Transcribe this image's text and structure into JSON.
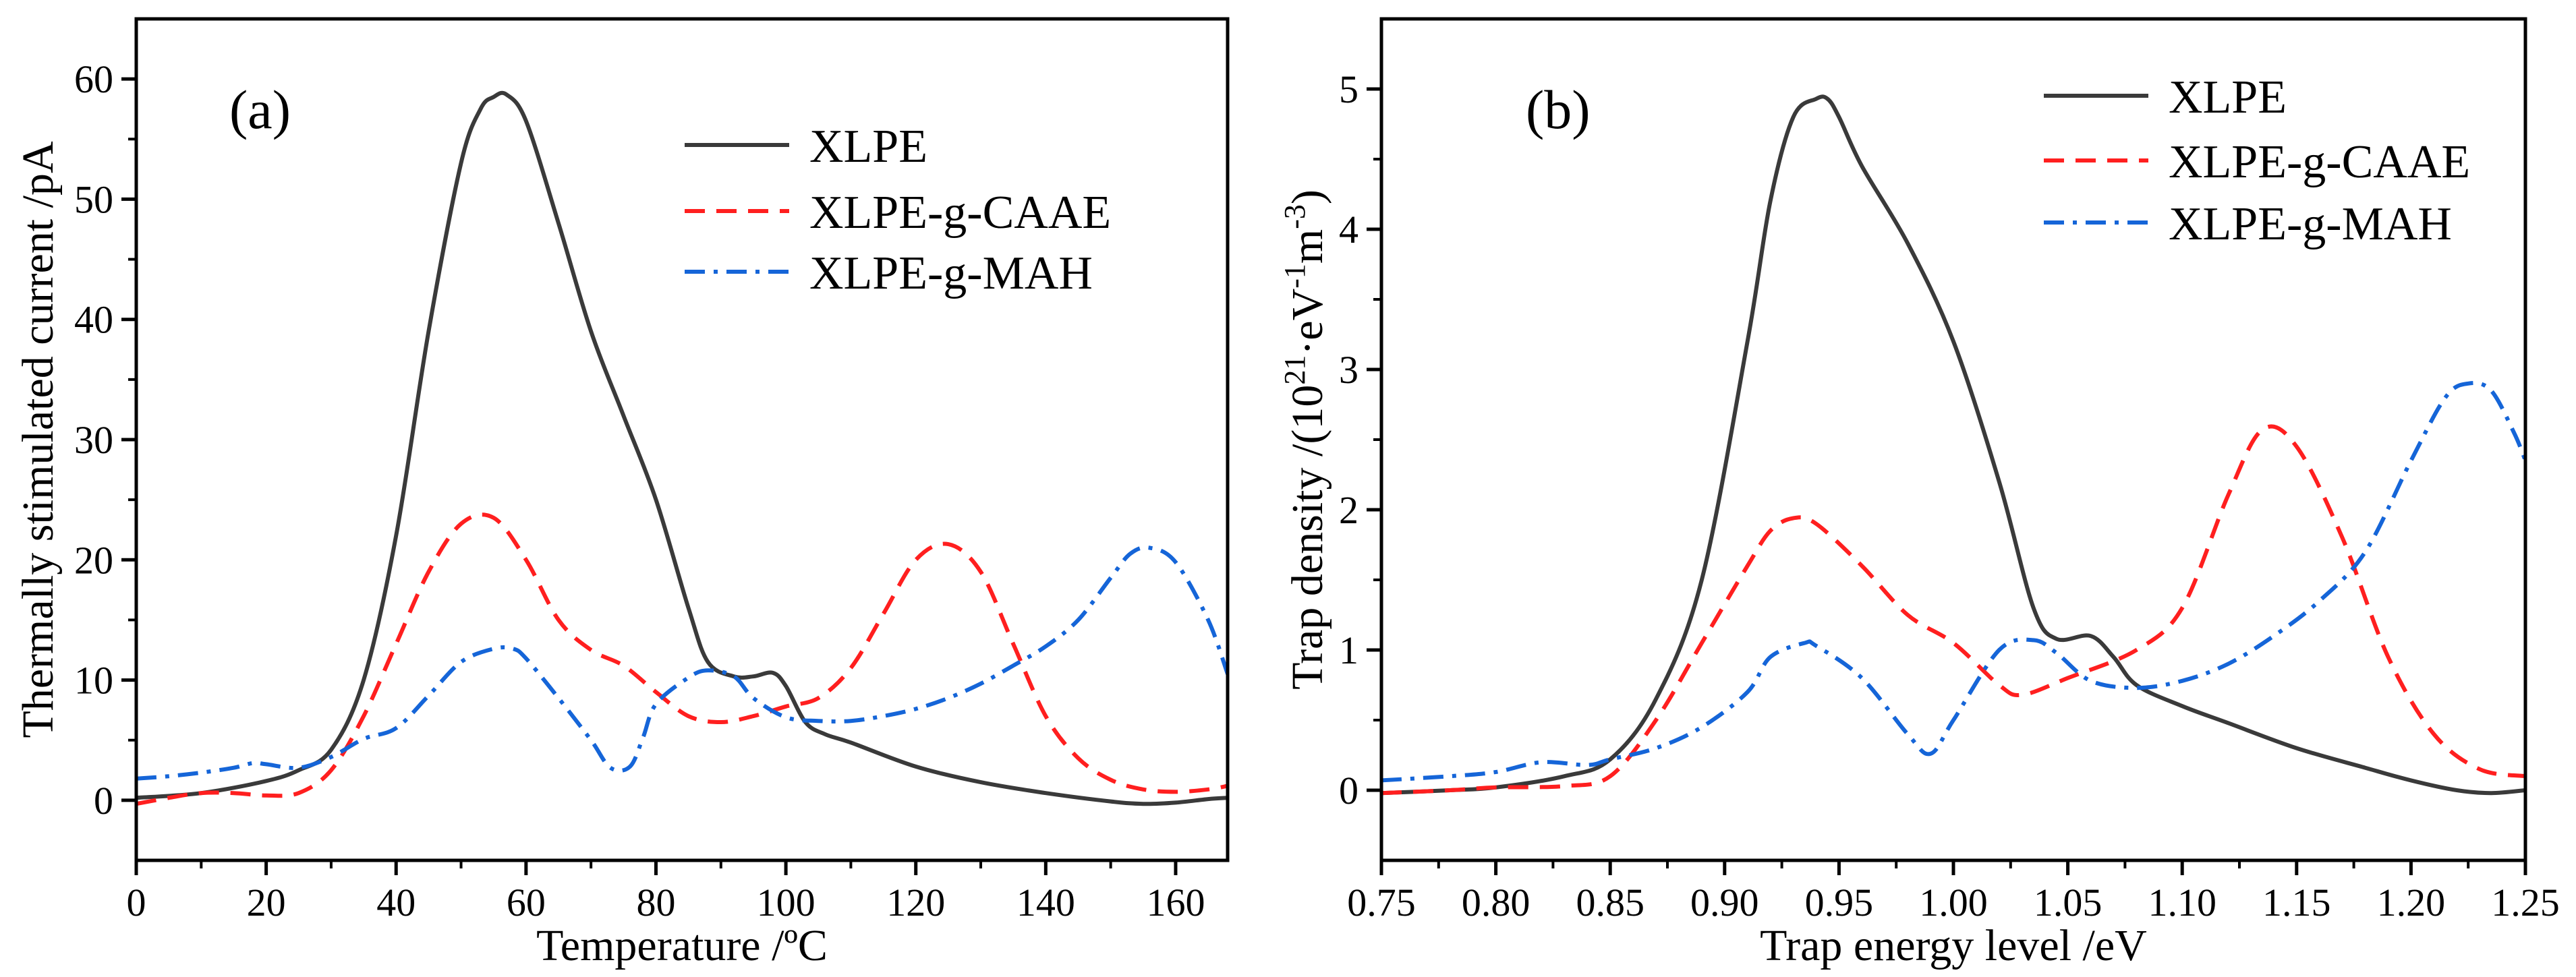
{
  "chart_data": [
    {
      "type": "line",
      "panel_label": "(a)",
      "xlabel": "Temperature /ºC",
      "ylabel": "Thermally stimulated current /pA",
      "xlim": [
        0,
        168
      ],
      "ylim": [
        -5,
        65
      ],
      "xticks": [
        0,
        20,
        40,
        60,
        80,
        100,
        120,
        140,
        160
      ],
      "yticks": [
        0,
        10,
        20,
        30,
        40,
        50,
        60
      ],
      "xtick_labels": [
        "0",
        "20",
        "40",
        "60",
        "80",
        "100",
        "120",
        "140",
        "160"
      ],
      "ytick_labels": [
        "0",
        "10",
        "20",
        "30",
        "40",
        "50",
        "60"
      ],
      "legend_position": "top-right",
      "series": [
        {
          "name": "XLPE",
          "color": "#3a3a3a",
          "style": "solid",
          "x": [
            0,
            10,
            20,
            25,
            30,
            35,
            40,
            45,
            50,
            53,
            55,
            57,
            60,
            65,
            70,
            75,
            80,
            85,
            88,
            92,
            95,
            98,
            100,
            103,
            106,
            110,
            120,
            130,
            140,
            150,
            155,
            160,
            165,
            168
          ],
          "y": [
            0.2,
            0.6,
            1.6,
            2.5,
            4.2,
            10,
            22,
            39,
            53,
            57.5,
            58.5,
            58.7,
            56.5,
            48,
            39,
            32,
            25,
            16,
            11.5,
            10.3,
            10.3,
            10.6,
            9.5,
            6.5,
            5.5,
            4.8,
            2.8,
            1.5,
            0.6,
            -0.1,
            -0.3,
            -0.2,
            0.1,
            0.2
          ]
        },
        {
          "name": "XLPE-g-CAAE",
          "color": "#ff1f1f",
          "style": "dashed",
          "x": [
            0,
            5,
            10,
            15,
            20,
            25,
            30,
            35,
            40,
            45,
            50,
            55,
            60,
            65,
            70,
            75,
            80,
            85,
            90,
            95,
            100,
            105,
            110,
            115,
            120,
            125,
            130,
            135,
            140,
            145,
            150,
            155,
            160,
            165,
            168
          ],
          "y": [
            -0.3,
            0.2,
            0.6,
            0.6,
            0.4,
            0.6,
            2.5,
            7,
            13,
            19,
            23,
            23.5,
            20,
            15,
            12.5,
            11.2,
            9,
            7,
            6.5,
            7,
            7.8,
            8.5,
            11,
            15.5,
            20,
            21.3,
            19,
            13,
            7,
            3.5,
            1.7,
            0.9,
            0.7,
            0.9,
            1.2
          ]
        },
        {
          "name": "XLPE-g-MAH",
          "color": "#1565d8",
          "style": "dashdot",
          "x": [
            0,
            5,
            10,
            15,
            18,
            20,
            25,
            30,
            35,
            40,
            45,
            50,
            55,
            58,
            60,
            65,
            70,
            73,
            76,
            78,
            80,
            85,
            88,
            92,
            95,
            100,
            105,
            110,
            115,
            120,
            125,
            130,
            135,
            140,
            145,
            150,
            153,
            156,
            160,
            165,
            168
          ],
          "y": [
            1.8,
            2,
            2.3,
            2.7,
            3.1,
            3,
            2.7,
            3.6,
            5.1,
            6,
            8.7,
            11.5,
            12.6,
            12.6,
            11.8,
            8.5,
            5,
            2.7,
            2.8,
            5.2,
            8,
            10.2,
            10.8,
            10.3,
            8.5,
            6.9,
            6.6,
            6.6,
            7,
            7.6,
            8.5,
            9.7,
            11.2,
            12.8,
            15,
            18.5,
            20.5,
            21,
            19.8,
            15,
            10.5
          ]
        }
      ]
    },
    {
      "type": "line",
      "panel_label": "(b)",
      "xlabel": "Trap energy level /eV",
      "ylabel_main": "Trap density /(10",
      "ylabel_sup1": "21",
      "ylabel_mid": "·eV",
      "ylabel_sup2": "-1",
      "ylabel_mid2": "m",
      "ylabel_sup3": "-3",
      "ylabel_end": ")",
      "xlim": [
        0.75,
        1.25
      ],
      "ylim": [
        -0.5,
        5.5
      ],
      "xticks": [
        0.75,
        0.8,
        0.85,
        0.9,
        0.95,
        1.0,
        1.05,
        1.1,
        1.15,
        1.2,
        1.25
      ],
      "yticks": [
        0,
        1,
        2,
        3,
        4,
        5
      ],
      "xtick_labels": [
        "0.75",
        "0.80",
        "0.85",
        "0.90",
        "0.95",
        "1.00",
        "1.05",
        "1.10",
        "1.15",
        "1.20",
        "1.25"
      ],
      "ytick_labels": [
        "0",
        "1",
        "2",
        "3",
        "4",
        "5"
      ],
      "legend_position": "top-right",
      "series": [
        {
          "name": "XLPE",
          "color": "#3a3a3a",
          "style": "solid",
          "x": [
            0.75,
            0.78,
            0.8,
            0.83,
            0.85,
            0.87,
            0.89,
            0.91,
            0.92,
            0.93,
            0.94,
            0.945,
            0.95,
            0.96,
            0.98,
            1.0,
            1.02,
            1.035,
            1.045,
            1.06,
            1.07,
            1.08,
            1.1,
            1.12,
            1.15,
            1.18,
            1.2,
            1.22,
            1.235,
            1.25
          ],
          "y": [
            -0.02,
            0,
            0.02,
            0.1,
            0.22,
            0.65,
            1.5,
            3.2,
            4.2,
            4.8,
            4.93,
            4.93,
            4.8,
            4.45,
            3.9,
            3.2,
            2.2,
            1.3,
            1.08,
            1.1,
            0.95,
            0.75,
            0.6,
            0.48,
            0.3,
            0.16,
            0.07,
            0,
            -0.02,
            0
          ]
        },
        {
          "name": "XLPE-g-CAAE",
          "color": "#ff1f1f",
          "style": "dashed",
          "x": [
            0.75,
            0.78,
            0.8,
            0.83,
            0.85,
            0.87,
            0.89,
            0.91,
            0.92,
            0.93,
            0.94,
            0.96,
            0.98,
            1.0,
            1.02,
            1.03,
            1.05,
            1.08,
            1.1,
            1.12,
            1.135,
            1.15,
            1.17,
            1.19,
            1.21,
            1.23,
            1.25
          ],
          "y": [
            -0.02,
            0,
            0.02,
            0.03,
            0.1,
            0.5,
            1.05,
            1.6,
            1.85,
            1.94,
            1.9,
            1.6,
            1.25,
            1.05,
            0.75,
            0.68,
            0.8,
            1.0,
            1.3,
            2.1,
            2.57,
            2.45,
            1.8,
            0.95,
            0.4,
            0.15,
            0.1
          ]
        },
        {
          "name": "XLPE-g-MAH",
          "color": "#1565d8",
          "style": "dashdot",
          "x": [
            0.75,
            0.78,
            0.8,
            0.82,
            0.84,
            0.85,
            0.87,
            0.89,
            0.91,
            0.92,
            0.935,
            0.94,
            0.96,
            0.98,
            0.99,
            1.0,
            1.02,
            1.035,
            1.045,
            1.06,
            1.08,
            1.1,
            1.12,
            1.14,
            1.16,
            1.18,
            1.2,
            1.215,
            1.225,
            1.235,
            1.245,
            1.25
          ],
          "y": [
            0.07,
            0.1,
            0.13,
            0.2,
            0.18,
            0.22,
            0.3,
            0.45,
            0.7,
            0.95,
            1.05,
            1.03,
            0.8,
            0.4,
            0.26,
            0.5,
            1.0,
            1.07,
            0.98,
            0.78,
            0.73,
            0.78,
            0.9,
            1.1,
            1.35,
            1.7,
            2.35,
            2.8,
            2.9,
            2.85,
            2.55,
            2.35
          ]
        }
      ]
    }
  ]
}
